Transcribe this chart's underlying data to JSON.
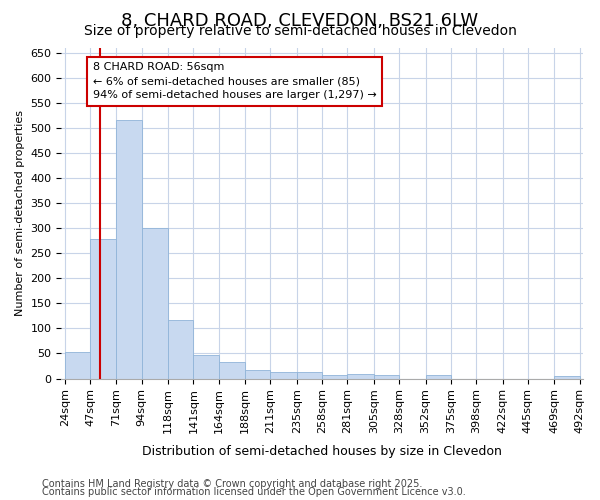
{
  "title": "8, CHARD ROAD, CLEVEDON, BS21 6LW",
  "subtitle": "Size of property relative to semi-detached houses in Clevedon",
  "xlabel": "Distribution of semi-detached houses by size in Clevedon",
  "ylabel": "Number of semi-detached properties",
  "bar_edges": [
    24,
    47,
    71,
    94,
    118,
    141,
    164,
    188,
    211,
    235,
    258,
    281,
    305,
    328,
    352,
    375,
    398,
    422,
    445,
    469,
    492
  ],
  "bar_heights": [
    52,
    278,
    515,
    300,
    117,
    46,
    32,
    17,
    14,
    13,
    8,
    9,
    8,
    0,
    8,
    0,
    0,
    0,
    0,
    5
  ],
  "bar_color": "#c8d9f0",
  "bar_edge_color": "#90b4d8",
  "grid_color": "#c8d4e8",
  "vline_x": 56,
  "vline_color": "#cc0000",
  "annotation_line1": "8 CHARD ROAD: 56sqm",
  "annotation_line2": "← 6% of semi-detached houses are smaller (85)",
  "annotation_line3": "94% of semi-detached houses are larger (1,297) →",
  "annotation_box_color": "#ffffff",
  "annotation_box_edge": "#cc0000",
  "ylim": [
    0,
    660
  ],
  "yticks": [
    0,
    50,
    100,
    150,
    200,
    250,
    300,
    350,
    400,
    450,
    500,
    550,
    600,
    650
  ],
  "footnote1": "Contains HM Land Registry data © Crown copyright and database right 2025.",
  "footnote2": "Contains public sector information licensed under the Open Government Licence v3.0.",
  "bg_color": "#ffffff",
  "plot_bg_color": "#ffffff",
  "title_fontsize": 13,
  "subtitle_fontsize": 10,
  "xlabel_fontsize": 9,
  "ylabel_fontsize": 8,
  "tick_fontsize": 8,
  "annot_fontsize": 8,
  "footnote_fontsize": 7
}
